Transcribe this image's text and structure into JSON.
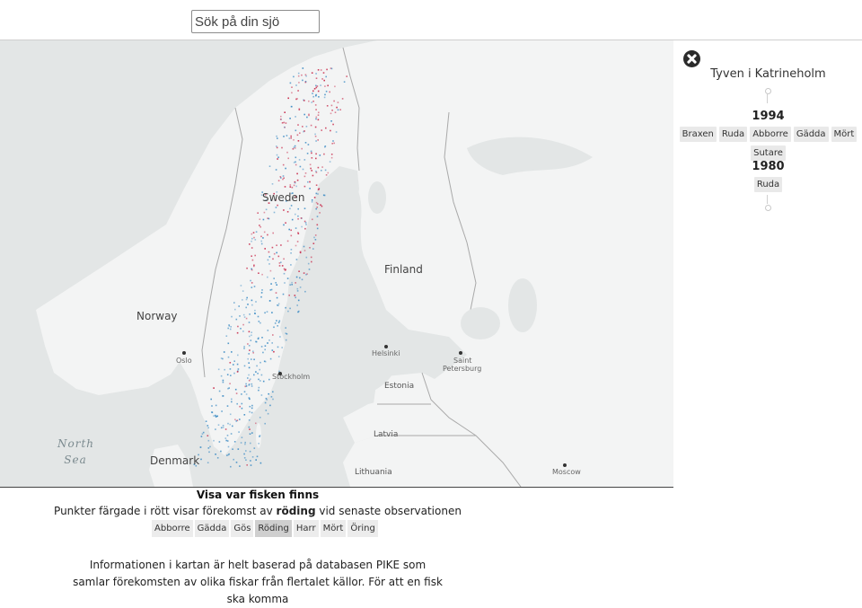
{
  "search": {
    "placeholder": "Sök på din sjö"
  },
  "map": {
    "labels": {
      "sweden": "Sweden",
      "finland": "Finland",
      "norway": "Norway",
      "denmark": "Denmark",
      "estonia": "Estonia",
      "latvia": "Latvia",
      "lithuania": "Lithuania",
      "oslo": "Oslo",
      "stockholm": "Stockholm",
      "helsinki": "Helsinki",
      "saint_petersburg_1": "Saint",
      "saint_petersburg_2": "Petersburg",
      "moscow": "Moscow",
      "north_sea_1": "North",
      "north_sea_2": "Sea"
    },
    "colors": {
      "water": "#e3e6e6",
      "land": "#f3f4f4",
      "presence": "#c8294a",
      "absence": "#3d8cc4"
    }
  },
  "panel": {
    "lake_name": "Tyven i Katrineholm",
    "observations": [
      {
        "year": "1994",
        "species": [
          "Braxen",
          "Ruda",
          "Abborre",
          "Gädda",
          "Mört",
          "Sutare"
        ]
      },
      {
        "year": "1980",
        "species": [
          "Ruda"
        ]
      }
    ]
  },
  "info": {
    "title": "Visa var fisken finns",
    "line_before": "Punkter färgade i rött visar förekomst av ",
    "line_species": "röding",
    "line_after": " vid senaste observationen",
    "filters": [
      "Abborre",
      "Gädda",
      "Gös",
      "Röding",
      "Harr",
      "Mört",
      "Öring"
    ],
    "active_filter": "Röding",
    "description": "Informationen i kartan är helt baserad på databasen PIKE som samlar förekomsten av olika fiskar från flertalet källor. För att en fisk ska komma"
  }
}
